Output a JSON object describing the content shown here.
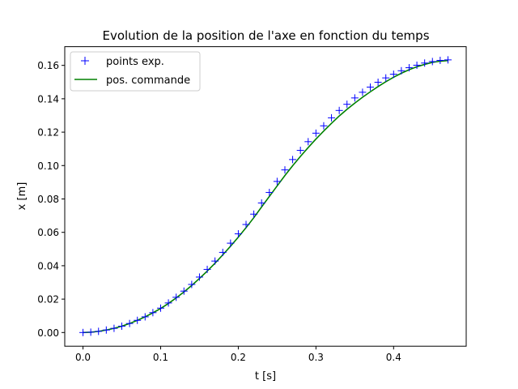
{
  "chart_data": {
    "type": "line",
    "title": "Evolution de la position de l'axe en fonction du temps",
    "xlabel": "t [s]",
    "ylabel": "x [m]",
    "xlim": [
      -0.0235,
      0.4935
    ],
    "ylim": [
      -0.0082,
      0.1712
    ],
    "xticks": [
      0.0,
      0.1,
      0.2,
      0.3,
      0.4
    ],
    "xtick_labels": [
      "0.0",
      "0.1",
      "0.2",
      "0.3",
      "0.4"
    ],
    "yticks": [
      0.0,
      0.02,
      0.04,
      0.06,
      0.08,
      0.1,
      0.12,
      0.14,
      0.16
    ],
    "ytick_labels": [
      "0.00",
      "0.02",
      "0.04",
      "0.06",
      "0.08",
      "0.10",
      "0.12",
      "0.14",
      "0.16"
    ],
    "grid": false,
    "legend_position": "top-left",
    "series": [
      {
        "name": "points exp.",
        "style": "markers",
        "marker": "plus",
        "color": "#0000ff",
        "x": [
          0.0,
          0.01,
          0.02,
          0.03,
          0.04,
          0.05,
          0.06,
          0.07,
          0.08,
          0.09,
          0.1,
          0.11,
          0.12,
          0.13,
          0.14,
          0.15,
          0.16,
          0.17,
          0.18,
          0.19,
          0.2,
          0.21,
          0.22,
          0.23,
          0.24,
          0.25,
          0.26,
          0.27,
          0.28,
          0.29,
          0.3,
          0.31,
          0.32,
          0.33,
          0.34,
          0.35,
          0.36,
          0.37,
          0.38,
          0.39,
          0.4,
          0.41,
          0.42,
          0.43,
          0.44,
          0.45,
          0.46,
          0.47
        ],
        "y": [
          0.0,
          0.0002,
          0.0007,
          0.0015,
          0.0025,
          0.0038,
          0.0054,
          0.0073,
          0.0094,
          0.0119,
          0.0146,
          0.0177,
          0.0211,
          0.0248,
          0.0288,
          0.0332,
          0.0378,
          0.0428,
          0.048,
          0.0535,
          0.0591,
          0.0647,
          0.0709,
          0.0776,
          0.0839,
          0.0905,
          0.0974,
          0.1036,
          0.1091,
          0.1143,
          0.1194,
          0.1238,
          0.1286,
          0.133,
          0.1367,
          0.1405,
          0.1439,
          0.147,
          0.1499,
          0.1525,
          0.1547,
          0.1568,
          0.1586,
          0.1601,
          0.1614,
          0.1623,
          0.163,
          0.1633
        ]
      },
      {
        "name": "pos. commande",
        "style": "line",
        "color": "#008000",
        "x": [
          0.0,
          0.01,
          0.02,
          0.03,
          0.04,
          0.05,
          0.06,
          0.07,
          0.08,
          0.09,
          0.1,
          0.11,
          0.12,
          0.13,
          0.14,
          0.15,
          0.16,
          0.17,
          0.18,
          0.19,
          0.2,
          0.21,
          0.22,
          0.23,
          0.24,
          0.25,
          0.26,
          0.27,
          0.28,
          0.29,
          0.3,
          0.31,
          0.32,
          0.33,
          0.34,
          0.35,
          0.36,
          0.37,
          0.38,
          0.39,
          0.4,
          0.41,
          0.42,
          0.43,
          0.44,
          0.45,
          0.46,
          0.47
        ],
        "y": [
          0.0,
          0.0002,
          0.0007,
          0.0015,
          0.0025,
          0.0038,
          0.0054,
          0.0073,
          0.0094,
          0.0118,
          0.0144,
          0.0174,
          0.0207,
          0.0243,
          0.0282,
          0.0324,
          0.0368,
          0.0415,
          0.0465,
          0.0517,
          0.0571,
          0.0628,
          0.0688,
          0.0752,
          0.0815,
          0.0878,
          0.094,
          0.0999,
          0.1055,
          0.1108,
          0.1159,
          0.1207,
          0.1253,
          0.1297,
          0.1337,
          0.1374,
          0.1409,
          0.1442,
          0.1473,
          0.1502,
          0.1529,
          0.1553,
          0.1574,
          0.1592,
          0.1606,
          0.1618,
          0.1625,
          0.1629
        ]
      }
    ]
  }
}
